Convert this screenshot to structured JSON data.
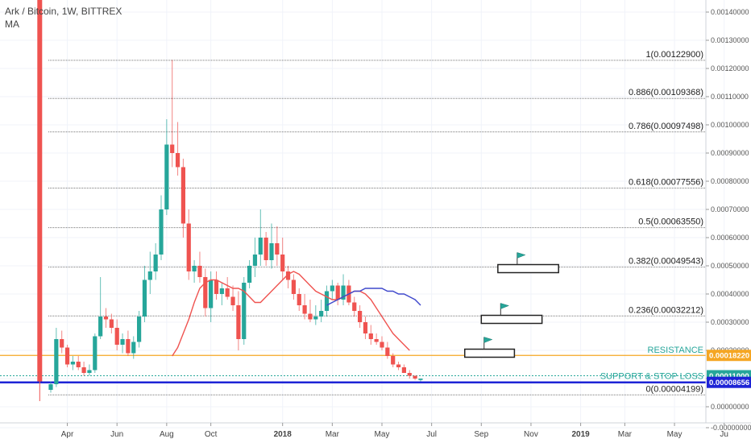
{
  "header": {
    "symbol_line": "Ark / Bitcoin, 1W, BITTREX",
    "indicator": "MA"
  },
  "chart_data": {
    "type": "candlestick",
    "title": "Ark / Bitcoin, 1W, BITTREX",
    "ylim": [
      -5e-06,
      0.000145
    ],
    "y_ticks": [
      "0.00140000",
      "0.00130000",
      "0.00120000",
      "0.00110000",
      "0.00100000",
      "0.00090000",
      "0.00080000",
      "0.00070000",
      "0.00060000",
      "0.00050000",
      "0.00040000",
      "0.00030000",
      "0.00020000",
      "0.00010000",
      "0.00000000",
      "-0.00000000"
    ],
    "y_tick_values": [
      0.0014,
      0.0013,
      0.0012,
      0.0011,
      0.001,
      0.0009,
      0.0008,
      0.0007,
      0.0006,
      0.0005,
      0.0004,
      0.0003,
      0.0002,
      0.0001,
      0.0,
      -0.0
    ],
    "x_ticks": [
      {
        "label": "Apr",
        "week": 3
      },
      {
        "label": "Jun",
        "week": 12
      },
      {
        "label": "Aug",
        "week": 21
      },
      {
        "label": "Oct",
        "week": 29
      },
      {
        "label": "2018",
        "week": 42
      },
      {
        "label": "Mar",
        "week": 51
      },
      {
        "label": "May",
        "week": 60
      },
      {
        "label": "Jul",
        "week": 69
      },
      {
        "label": "Sep",
        "week": 78
      },
      {
        "label": "Nov",
        "week": 87
      },
      {
        "label": "2019",
        "week": 96
      },
      {
        "label": "Mar",
        "week": 104
      },
      {
        "label": "May",
        "week": 113
      },
      {
        "label": "Ju",
        "week": 122
      }
    ],
    "fib_levels": [
      {
        "label": "1(0.00122900)",
        "value": 0.001229
      },
      {
        "label": "0.886(0.00109368)",
        "value": 0.00109368
      },
      {
        "label": "0.786(0.00097498)",
        "value": 0.00097498
      },
      {
        "label": "0.618(0.00077556)",
        "value": 0.00077556
      },
      {
        "label": "0.5(0.00063550)",
        "value": 0.0006355
      },
      {
        "label": "0.382(0.00049543)",
        "value": 0.00049543
      },
      {
        "label": "0.236(0.00032212)",
        "value": 0.00032212
      },
      {
        "label": "0(0.00004199)",
        "value": 4.199e-05
      }
    ],
    "resistance": {
      "label": "RESISTANCE",
      "value": 0.0001822,
      "price_tag": "0.00018220",
      "color": "#f5a623"
    },
    "support": {
      "label": "SUPPORT & STOP LOSS",
      "value": 0.00011,
      "price_tag": "0.00011000",
      "color": "#26a69a"
    },
    "current_price": {
      "value": 8.656e-05,
      "price_tag": "0.00008656",
      "color": "#1e24d6"
    },
    "first_week": {
      "week": -2,
      "open": 8e-05,
      "high": 0.00145,
      "low": 2e-05,
      "close": 9e-05
    },
    "candles": [
      [
        6e-05,
        9e-05,
        5e-05,
        8e-05
      ],
      [
        8e-05,
        0.00028,
        7e-05,
        0.00024
      ],
      [
        0.00024,
        0.00027,
        0.00019,
        0.00021
      ],
      [
        0.00021,
        0.00022,
        0.00014,
        0.00015
      ],
      [
        0.00015,
        0.00018,
        0.00013,
        0.00016
      ],
      [
        0.00016,
        0.00018,
        0.00013,
        0.00014
      ],
      [
        0.00014,
        0.00016,
        0.00011,
        0.00012
      ],
      [
        0.00012,
        0.00015,
        0.00011,
        0.00013
      ],
      [
        0.00013,
        0.00026,
        0.00012,
        0.00025
      ],
      [
        0.00025,
        0.00046,
        0.00024,
        0.00032
      ],
      [
        0.00032,
        0.00035,
        0.00028,
        0.00031
      ],
      [
        0.00031,
        0.00033,
        0.00026,
        0.00028
      ],
      [
        0.00028,
        0.00031,
        0.0002,
        0.00022
      ],
      [
        0.00022,
        0.00026,
        0.00019,
        0.00024
      ],
      [
        0.00024,
        0.00027,
        0.00018,
        0.00019
      ],
      [
        0.00019,
        0.00025,
        0.00017,
        0.00023
      ],
      [
        0.00023,
        0.00034,
        0.00021,
        0.00032
      ],
      [
        0.00032,
        0.0005,
        0.0003,
        0.00045
      ],
      [
        0.00045,
        0.00055,
        0.0004,
        0.00048
      ],
      [
        0.00048,
        0.00058,
        0.00045,
        0.00054
      ],
      [
        0.00054,
        0.00075,
        0.00052,
        0.0007
      ],
      [
        0.0007,
        0.00102,
        0.00068,
        0.00093
      ],
      [
        0.00093,
        0.00123,
        0.00085,
        0.0009
      ],
      [
        0.0009,
        0.00101,
        0.00082,
        0.00085
      ],
      [
        0.00085,
        0.00088,
        0.0006,
        0.00065
      ],
      [
        0.00065,
        0.0007,
        0.00045,
        0.00048
      ],
      [
        0.00048,
        0.00052,
        0.00044,
        0.0005
      ],
      [
        0.0005,
        0.00055,
        0.00044,
        0.00046
      ],
      [
        0.00046,
        0.00049,
        0.00032,
        0.00035
      ],
      [
        0.00035,
        0.00048,
        0.0003,
        0.00045
      ],
      [
        0.00045,
        0.00048,
        0.00038,
        0.0004
      ],
      [
        0.0004,
        0.00044,
        0.00036,
        0.00042
      ],
      [
        0.00042,
        0.00046,
        0.00038,
        0.00039
      ],
      [
        0.00039,
        0.00043,
        0.00034,
        0.00036
      ],
      [
        0.00036,
        0.00041,
        0.0002,
        0.00024
      ],
      [
        0.00024,
        0.00046,
        0.00022,
        0.00044
      ],
      [
        0.00044,
        0.00052,
        0.00042,
        0.0005
      ],
      [
        0.0005,
        0.0006,
        0.00046,
        0.00054
      ],
      [
        0.00054,
        0.0007,
        0.0005,
        0.0006
      ],
      [
        0.0006,
        0.00062,
        0.0005,
        0.00052
      ],
      [
        0.00052,
        0.00065,
        0.00049,
        0.00058
      ],
      [
        0.00058,
        0.00064,
        0.0005,
        0.00054
      ],
      [
        0.00054,
        0.0006,
        0.00045,
        0.00048
      ],
      [
        0.00048,
        0.0005,
        0.00042,
        0.00045
      ],
      [
        0.00045,
        0.00047,
        0.00038,
        0.0004
      ],
      [
        0.0004,
        0.00042,
        0.00034,
        0.00036
      ],
      [
        0.00036,
        0.0004,
        0.00031,
        0.00033
      ],
      [
        0.00033,
        0.00038,
        0.0003,
        0.00031
      ],
      [
        0.00031,
        0.00036,
        0.00029,
        0.00032
      ],
      [
        0.00032,
        0.00038,
        0.0003,
        0.00034
      ],
      [
        0.00034,
        0.00043,
        0.00032,
        0.00041
      ],
      [
        0.00041,
        0.00045,
        0.00038,
        0.00043
      ],
      [
        0.00043,
        0.00044,
        0.00036,
        0.00038
      ],
      [
        0.00038,
        0.00047,
        0.00036,
        0.00043
      ],
      [
        0.00043,
        0.00045,
        0.00036,
        0.00037
      ],
      [
        0.00037,
        0.00039,
        0.00032,
        0.00034
      ],
      [
        0.00034,
        0.00036,
        0.00028,
        0.0003
      ],
      [
        0.0003,
        0.00032,
        0.00024,
        0.00026
      ],
      [
        0.00026,
        0.00029,
        0.00022,
        0.00024
      ],
      [
        0.00024,
        0.00026,
        0.00022,
        0.00023
      ],
      [
        0.00023,
        0.00025,
        0.0002,
        0.00021
      ],
      [
        0.00021,
        0.00023,
        0.00017,
        0.00018
      ],
      [
        0.00018,
        0.00019,
        0.00014,
        0.00015
      ],
      [
        0.00015,
        0.00016,
        0.00013,
        0.00014
      ],
      [
        0.00014,
        0.00015,
        0.00012,
        0.00012
      ],
      [
        0.00012,
        0.00013,
        0.0001,
        0.00011
      ],
      [
        0.00011,
        0.00011,
        9.5e-05,
        0.0001
      ],
      [
        9.5e-05,
        0.0001,
        9e-05,
        0.0001
      ]
    ],
    "ma_red": {
      "name": "",
      "color": "#ef5350",
      "start_week": 22,
      "values": [
        0.00018,
        0.00021,
        0.00026,
        0.00031,
        0.00037,
        0.00042,
        0.00044,
        0.00045,
        0.00045,
        0.00044,
        0.00043,
        0.00042,
        0.00042,
        0.00041,
        0.00039,
        0.00037,
        0.00037,
        0.00039,
        0.00041,
        0.00043,
        0.00045,
        0.00047,
        0.00048,
        0.00047,
        0.00045,
        0.00043,
        0.00041,
        0.0004,
        0.00039,
        0.00038,
        0.00038,
        0.00039,
        0.0004,
        0.00041,
        0.00041,
        0.0004,
        0.00038,
        0.00035,
        0.00032,
        0.00029,
        0.00026,
        0.00024,
        0.00022,
        0.0002
      ]
    },
    "ma_blue": {
      "name": "",
      "color": "#3f48cc",
      "start_week": 50,
      "values": [
        0.00036,
        0.00037,
        0.00038,
        0.00039,
        0.0004,
        0.00041,
        0.00041,
        0.00042,
        0.00042,
        0.00042,
        0.00042,
        0.00041,
        0.00041,
        0.0004,
        0.0004,
        0.00039,
        0.00038,
        0.00036
      ]
    },
    "grid": true,
    "annotations": [
      {
        "kind": "target-box",
        "week_start": 81,
        "week_end": 92,
        "value": 0.00049,
        "flag": true
      },
      {
        "kind": "target-box",
        "week_start": 78,
        "week_end": 89,
        "value": 0.00031,
        "flag": true
      },
      {
        "kind": "target-box",
        "week_start": 75,
        "week_end": 84,
        "value": 0.00019,
        "flag": true
      }
    ]
  }
}
